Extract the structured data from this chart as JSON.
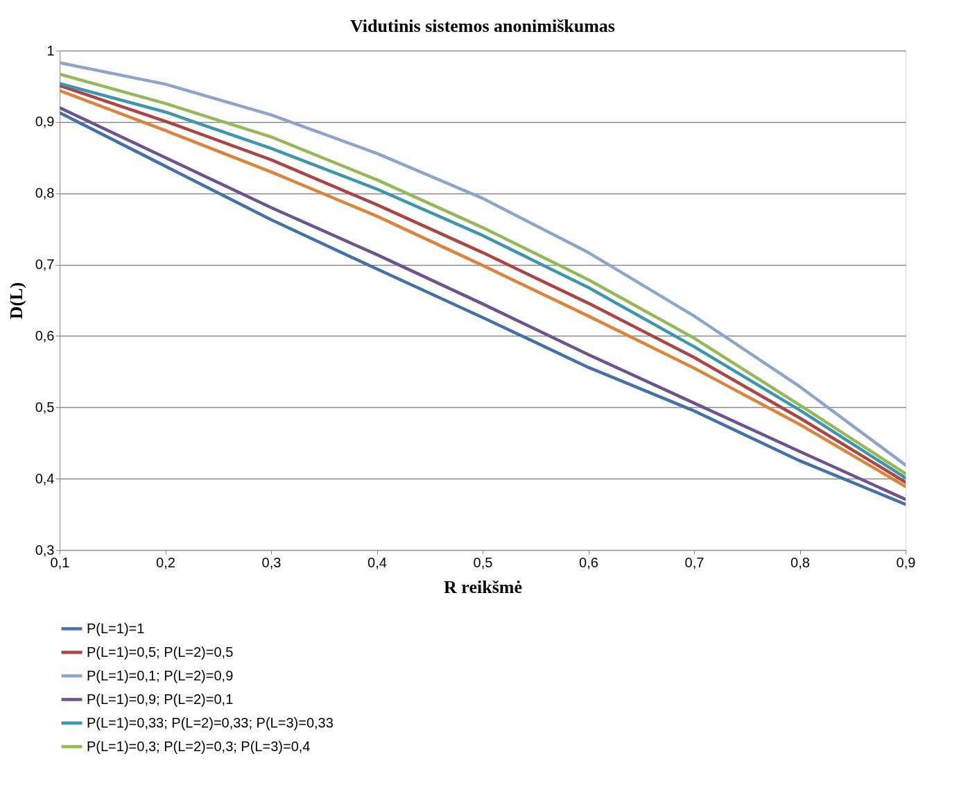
{
  "chart_data": {
    "type": "line",
    "title": "Vidutinis sistemos anonimiškumas",
    "xlabel": "R reikšmė",
    "ylabel": "D(L)",
    "x": [
      0.1,
      0.2,
      0.3,
      0.4,
      0.5,
      0.6,
      0.7,
      0.8,
      0.9
    ],
    "xlim": [
      0.1,
      0.9
    ],
    "xticks": [
      {
        "value": 0.1,
        "label": "0,1"
      },
      {
        "value": 0.2,
        "label": "0,2"
      },
      {
        "value": 0.3,
        "label": "0,3"
      },
      {
        "value": 0.4,
        "label": "0,4"
      },
      {
        "value": 0.5,
        "label": "0,5"
      },
      {
        "value": 0.6,
        "label": "0,6"
      },
      {
        "value": 0.7,
        "label": "0,7"
      },
      {
        "value": 0.8,
        "label": "0,8"
      },
      {
        "value": 0.9,
        "label": "0,9"
      }
    ],
    "ylim": [
      0.3,
      1
    ],
    "yticks": [
      {
        "value": 0.3,
        "label": "0,3"
      },
      {
        "value": 0.4,
        "label": "0,4"
      },
      {
        "value": 0.5,
        "label": "0,5"
      },
      {
        "value": 0.6,
        "label": "0,6"
      },
      {
        "value": 0.7,
        "label": "0,7"
      },
      {
        "value": 0.8,
        "label": "0,8"
      },
      {
        "value": 0.9,
        "label": "0,9"
      },
      1
    ],
    "grid": "y",
    "legend": "bottom",
    "series": [
      {
        "name": "P(L=1)=1",
        "color": "#4472a8",
        "values": [
          0.913,
          0.838,
          0.763,
          0.694,
          0.626,
          0.556,
          0.495,
          0.425,
          0.364
        ]
      },
      {
        "name": "P(L=1)=0,5; P(L=2)=0,5",
        "color": "#aa4643",
        "values": [
          0.951,
          0.901,
          0.847,
          0.784,
          0.717,
          0.646,
          0.57,
          0.485,
          0.395
        ]
      },
      {
        "name": "P(L=1)=0,1; P(L=2)=0,9",
        "color": "#8ea5cb",
        "values": [
          0.983,
          0.953,
          0.91,
          0.856,
          0.793,
          0.717,
          0.628,
          0.529,
          0.419
        ]
      },
      {
        "name": "P(L=1)=0,9; P(L=2)=0,1",
        "color": "#6e548d",
        "values": [
          0.92,
          0.85,
          0.78,
          0.714,
          0.645,
          0.574,
          0.506,
          0.438,
          0.371
        ]
      },
      {
        "name": "P(L=1)=0,33; P(L=2)=0,33; P(L=3)=0,33",
        "color": "#3d96ae",
        "values": [
          0.954,
          0.914,
          0.863,
          0.806,
          0.741,
          0.668,
          0.585,
          0.496,
          0.401
        ]
      },
      {
        "name": "P(L=1)=0,3; P(L=2)=0,3; P(L=3)=0,4",
        "color": "#93b958",
        "values": [
          0.967,
          0.926,
          0.879,
          0.819,
          0.752,
          0.679,
          0.597,
          0.503,
          0.407
        ]
      },
      {
        "color": "#db843d",
        "values": [
          0.944,
          0.888,
          0.83,
          0.768,
          0.699,
          0.628,
          0.555,
          0.476,
          0.389
        ]
      }
    ]
  }
}
